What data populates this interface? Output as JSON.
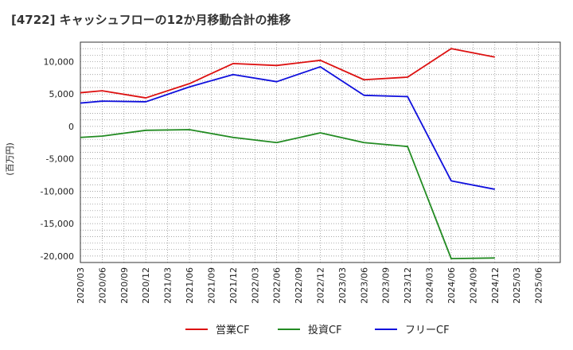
{
  "chart_data": {
    "type": "line",
    "title": "[4722]  キャッシュフローの12か月移動合計の推移",
    "ylabel": "(百万円)",
    "xlabel": "",
    "ylim": [
      -21000,
      13000
    ],
    "yticks": [
      10000,
      5000,
      0,
      -5000,
      -10000,
      -15000,
      -20000
    ],
    "ytick_labels": [
      "10,000",
      "5,000",
      "0",
      "-5,000",
      "-10,000",
      "-15,000",
      "-20,000"
    ],
    "categories": [
      "2020/03",
      "2020/06",
      "2020/09",
      "2020/12",
      "2021/03",
      "2021/06",
      "2021/09",
      "2021/12",
      "2022/03",
      "2022/06",
      "2022/09",
      "2022/12",
      "2023/03",
      "2023/06",
      "2023/09",
      "2023/12",
      "2024/03",
      "2024/06",
      "2024/09",
      "2024/12",
      "2025/03",
      "2025/06"
    ],
    "grid": true,
    "legend_position": "bottom",
    "series": [
      {
        "name": "営業CF",
        "color": "#dd1111",
        "points": [
          [
            0,
            5200
          ],
          [
            1,
            5500
          ],
          [
            3,
            4400
          ],
          [
            5,
            6600
          ],
          [
            7,
            9700
          ],
          [
            9,
            9400
          ],
          [
            11,
            10200
          ],
          [
            13,
            7200
          ],
          [
            15,
            7600
          ],
          [
            17,
            12000
          ],
          [
            19,
            10700
          ]
        ]
      },
      {
        "name": "投資CF",
        "color": "#228b22",
        "points": [
          [
            0,
            -1700
          ],
          [
            1,
            -1500
          ],
          [
            3,
            -600
          ],
          [
            5,
            -500
          ],
          [
            7,
            -1700
          ],
          [
            9,
            -2500
          ],
          [
            11,
            -1000
          ],
          [
            13,
            -2500
          ],
          [
            15,
            -3100
          ],
          [
            17,
            -20400
          ],
          [
            19,
            -20300
          ]
        ]
      },
      {
        "name": "フリーCF",
        "color": "#1010dd",
        "points": [
          [
            0,
            3600
          ],
          [
            1,
            3900
          ],
          [
            3,
            3800
          ],
          [
            5,
            6100
          ],
          [
            7,
            8000
          ],
          [
            9,
            6900
          ],
          [
            11,
            9200
          ],
          [
            13,
            4800
          ],
          [
            15,
            4600
          ],
          [
            17,
            -8400
          ],
          [
            19,
            -9700
          ]
        ]
      }
    ]
  }
}
